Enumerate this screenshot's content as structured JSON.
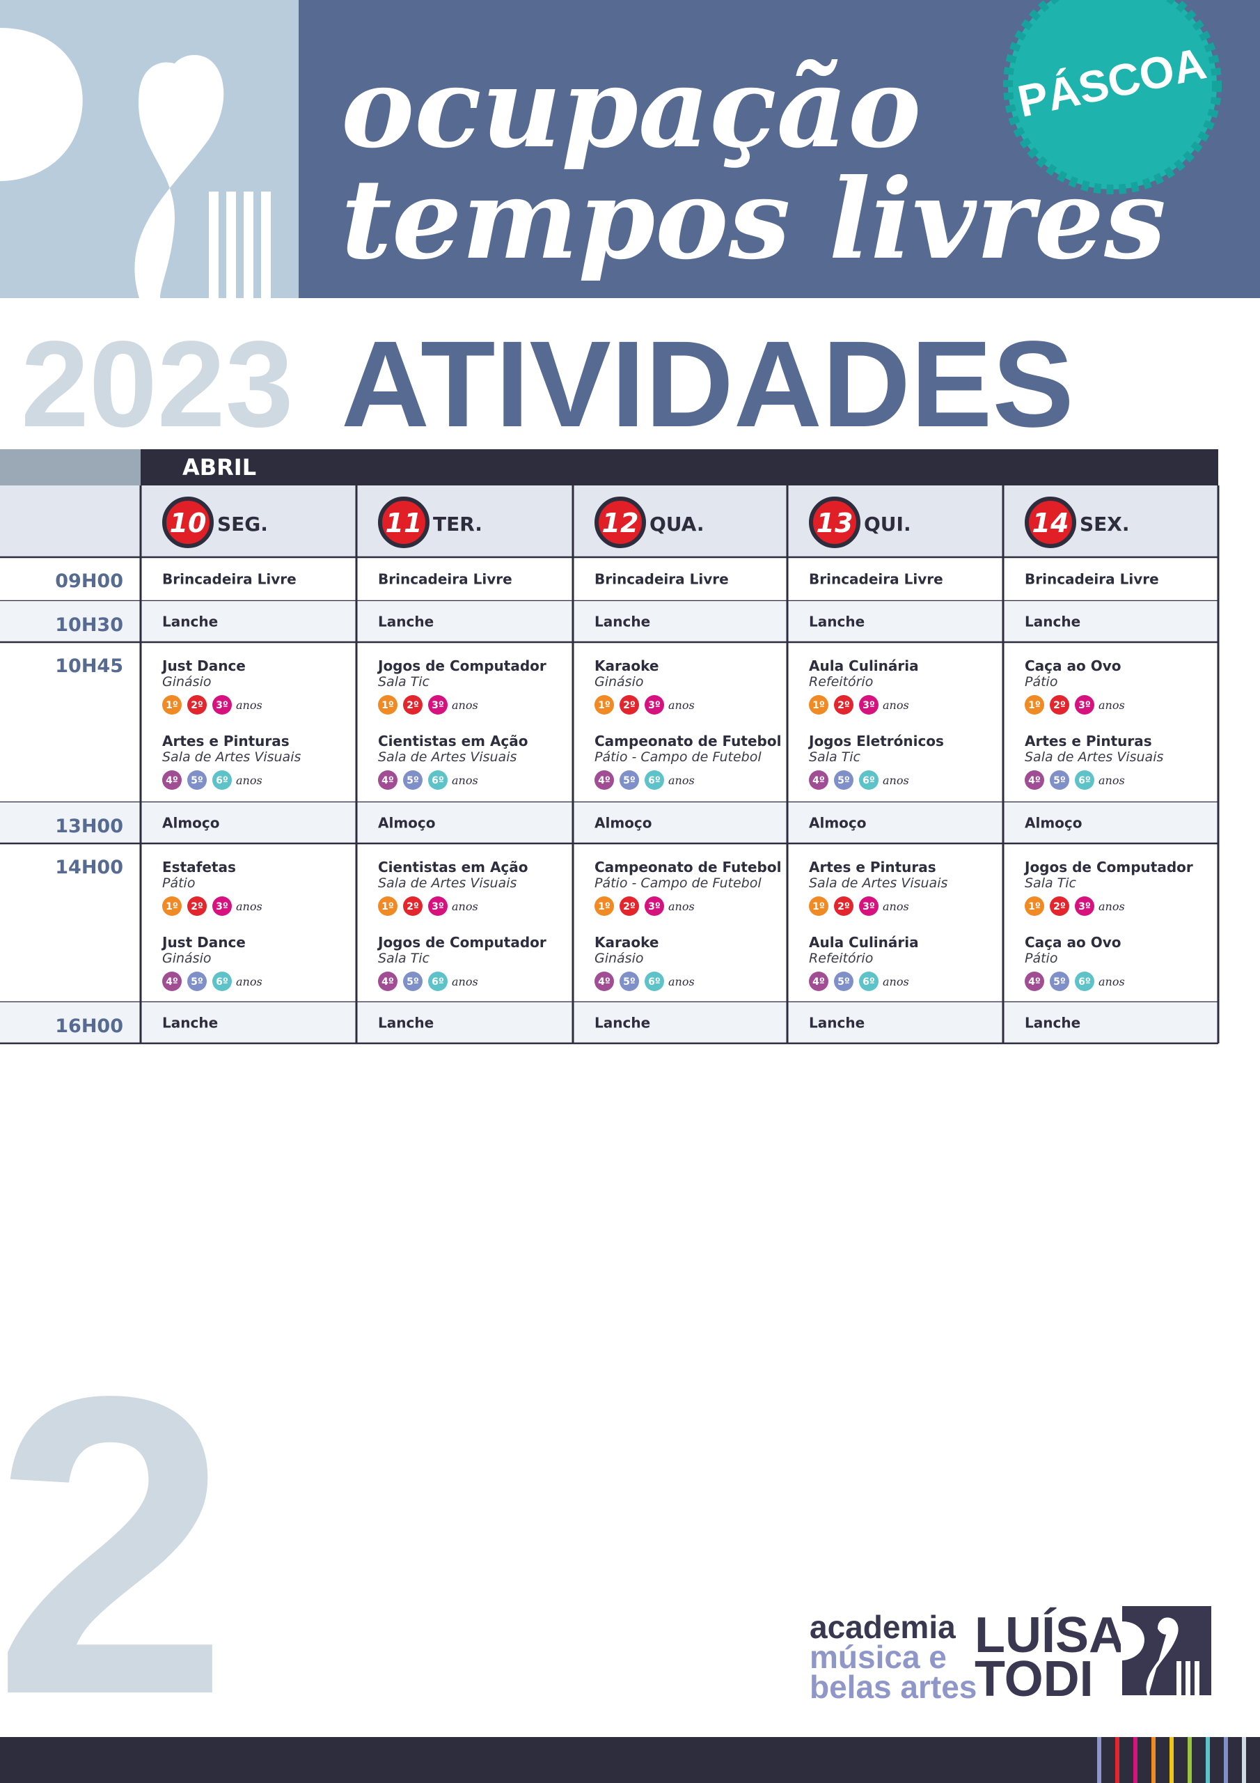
{
  "header": {
    "title_lines": [
      "ocupação",
      "tempos livres"
    ],
    "badge": "PÁSCOA"
  },
  "year": "2023",
  "heading": "ATIVIDADES",
  "table": {
    "month": "ABRIL",
    "days": [
      {
        "number": "10",
        "name": "SEG."
      },
      {
        "number": "11",
        "name": "TER."
      },
      {
        "number": "12",
        "name": "QUA."
      },
      {
        "number": "13",
        "name": "QUI."
      },
      {
        "number": "14",
        "name": "SEX."
      }
    ],
    "grades": [
      [
        "1º",
        "2º",
        "3º"
      ],
      [
        "4º",
        "5º",
        "6º"
      ]
    ],
    "grades_unit": "anos",
    "rows": [
      {
        "time": "09H00",
        "cells": [
          {
            "text": "Brincadeira Livre"
          },
          {
            "text": "Brincadeira Livre"
          },
          {
            "text": "Brincadeira Livre"
          },
          {
            "text": "Brincadeira Livre"
          },
          {
            "text": "Brincadeira Livre"
          }
        ]
      },
      {
        "time": "10H30",
        "cells": [
          {
            "text": "Lanche"
          },
          {
            "text": "Lanche"
          },
          {
            "text": "Lanche"
          },
          {
            "text": "Lanche"
          },
          {
            "text": "Lanche"
          }
        ]
      },
      {
        "time": "10H45",
        "cells": [
          {
            "activities": [
              {
                "name": "Just Dance",
                "place": "Ginásio"
              },
              {
                "name": "Artes e Pinturas",
                "place": "Sala de Artes Visuais"
              }
            ]
          },
          {
            "activities": [
              {
                "name": "Jogos de Computador",
                "place": "Sala Tic"
              },
              {
                "name": "Cientistas em Ação",
                "place": "Sala de Artes Visuais"
              }
            ]
          },
          {
            "activities": [
              {
                "name": "Karaoke",
                "place": "Ginásio"
              },
              {
                "name": "Campeonato de Futebol",
                "place": "Pátio - Campo de Futebol"
              }
            ]
          },
          {
            "activities": [
              {
                "name": "Aula Culinária",
                "place": "Refeitório"
              },
              {
                "name": "Jogos Eletrónicos",
                "place": "Sala Tic"
              }
            ]
          },
          {
            "activities": [
              {
                "name": "Caça ao Ovo",
                "place": "Pátio"
              },
              {
                "name": "Artes e Pinturas",
                "place": "Sala de Artes Visuais"
              }
            ]
          }
        ]
      },
      {
        "time": "13H00",
        "cells": [
          {
            "text": "Almoço"
          },
          {
            "text": "Almoço"
          },
          {
            "text": "Almoço"
          },
          {
            "text": "Almoço"
          },
          {
            "text": "Almoço"
          }
        ]
      },
      {
        "time": "14H00",
        "cells": [
          {
            "activities": [
              {
                "name": "Estafetas",
                "place": "Pátio"
              },
              {
                "name": "Just Dance",
                "place": "Ginásio"
              }
            ]
          },
          {
            "activities": [
              {
                "name": "Cientistas em Ação",
                "place": "Sala de Artes Visuais"
              },
              {
                "name": "Jogos de Computador",
                "place": "Sala Tic"
              }
            ]
          },
          {
            "activities": [
              {
                "name": "Campeonato de Futebol",
                "place": "Pátio - Campo de Futebol"
              },
              {
                "name": "Karaoke",
                "place": "Ginásio"
              }
            ]
          },
          {
            "activities": [
              {
                "name": "Artes e Pinturas",
                "place": "Sala de Artes Visuais"
              },
              {
                "name": "Aula Culinária",
                "place": "Refeitório"
              }
            ]
          },
          {
            "activities": [
              {
                "name": "Jogos de Computador",
                "place": "Sala Tic"
              },
              {
                "name": "Caça ao Ovo",
                "place": "Pátio"
              }
            ]
          }
        ]
      },
      {
        "time": "16H00",
        "cells": [
          {
            "text": "Lanche"
          },
          {
            "text": "Lanche"
          },
          {
            "text": "Lanche"
          },
          {
            "text": "Lanche"
          },
          {
            "text": "Lanche"
          }
        ]
      }
    ]
  },
  "page_number": "2",
  "logo": {
    "lines": [
      "academia",
      "música e",
      "belas artes"
    ],
    "name_lines": [
      "LUÍSA",
      "TODI"
    ]
  }
}
